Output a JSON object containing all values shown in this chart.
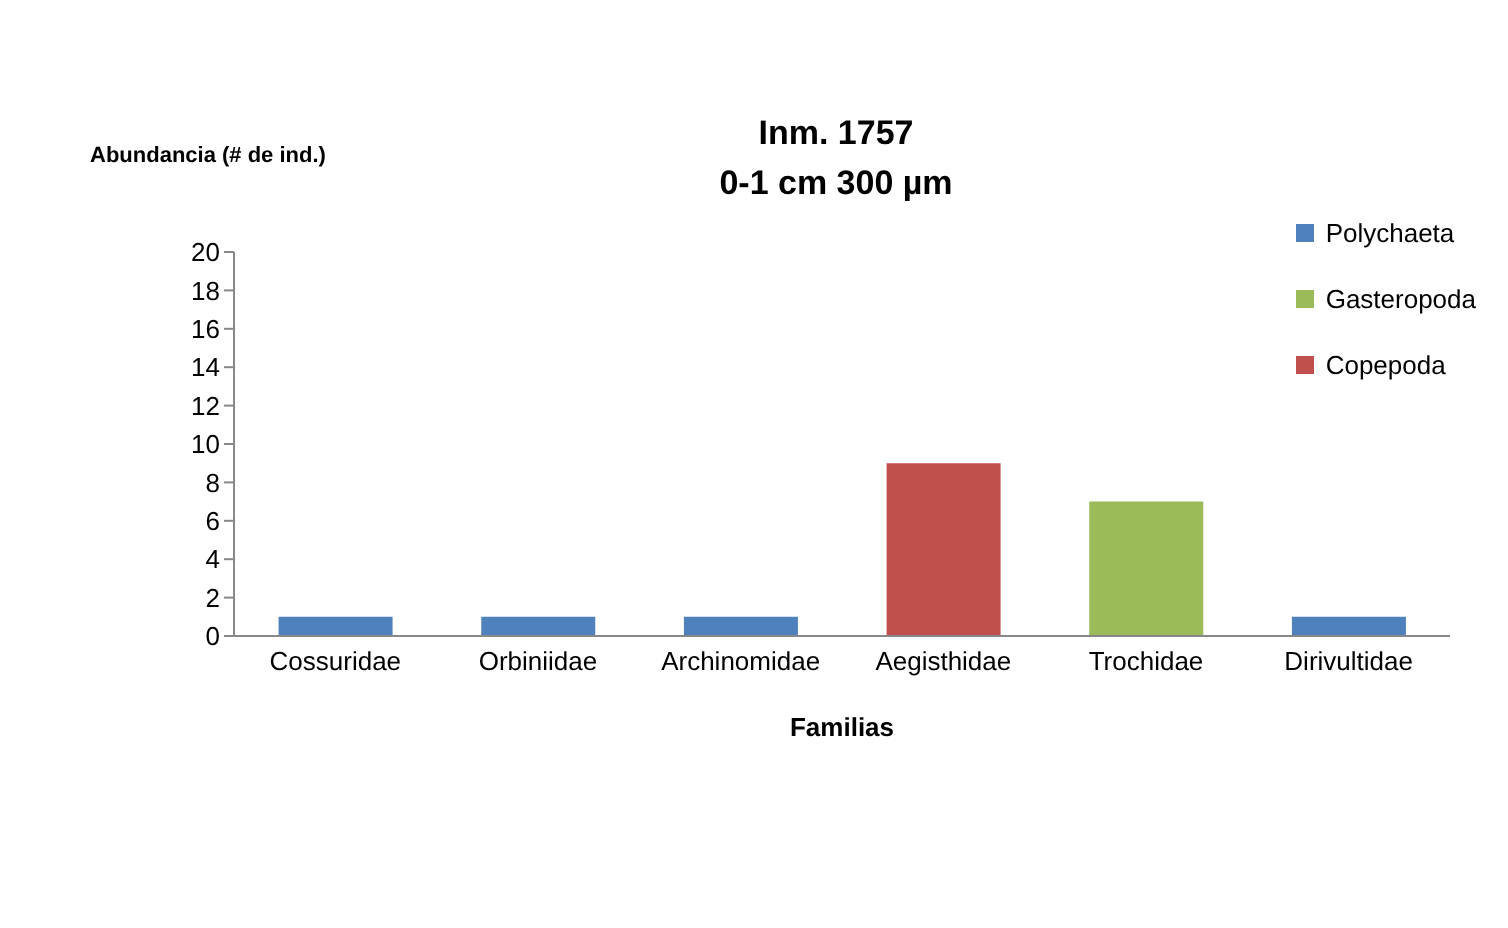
{
  "chart_data": {
    "type": "bar",
    "title": "Inm. 1757",
    "subtitle": "0-1 cm 300 µm",
    "xlabel": "Familias",
    "ylabel": "Abundancia (# de ind.)",
    "categories": [
      "Cossuridae",
      "Orbiniidae",
      "Archinomidae",
      "Aegisthidae",
      "Trochidae",
      "Dirivultidae"
    ],
    "series": [
      {
        "name": "Polychaeta",
        "color": "#4f81bd",
        "values": [
          1,
          1,
          1,
          null,
          null,
          1
        ]
      },
      {
        "name": "Gasteropoda",
        "color": "#9bbb59",
        "values": [
          null,
          null,
          null,
          null,
          7,
          null
        ]
      },
      {
        "name": "Copepoda",
        "color": "#c0504d",
        "values": [
          null,
          null,
          null,
          9,
          null,
          null
        ]
      }
    ],
    "stacked": true,
    "ylim": [
      0,
      20
    ],
    "yticks": [
      0,
      2,
      4,
      6,
      8,
      10,
      12,
      14,
      16,
      18,
      20
    ],
    "grid": false,
    "legend": "right"
  }
}
